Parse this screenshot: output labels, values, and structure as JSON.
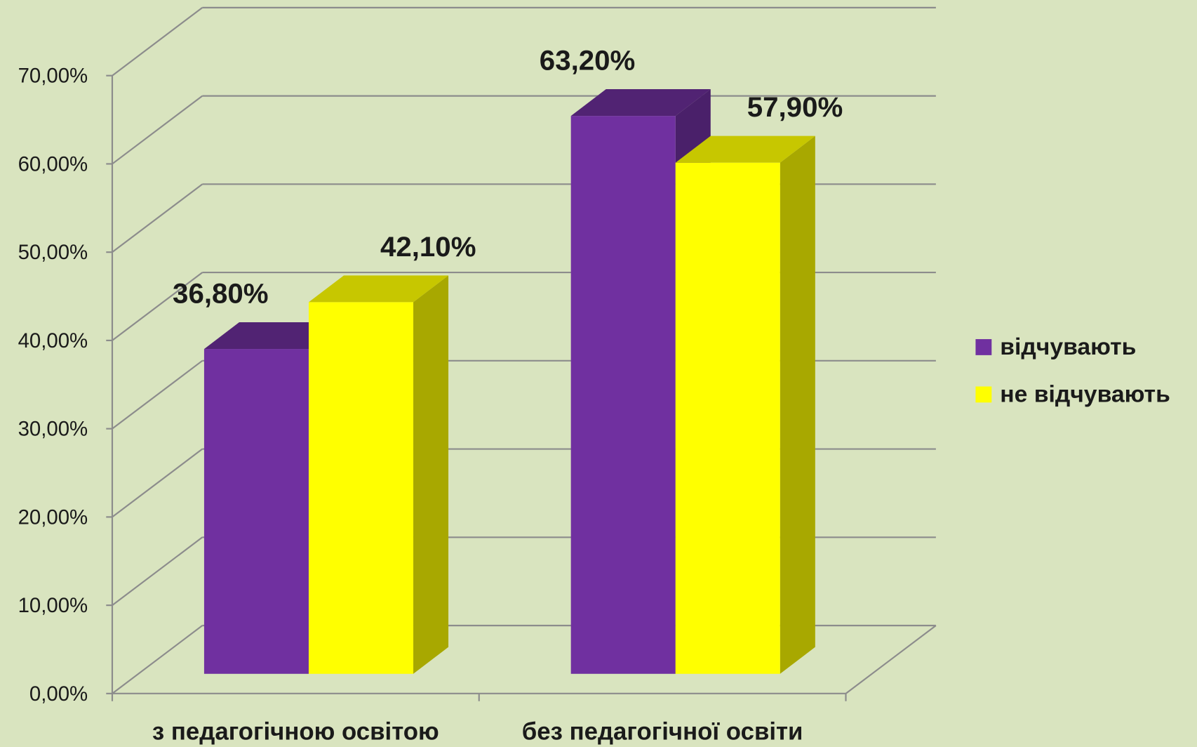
{
  "chart_data": {
    "type": "bar3d",
    "categories": [
      "з педагогічною освітою",
      "без педагогічної освіти"
    ],
    "series": [
      {
        "name": "відчувають",
        "color": "#7030a0",
        "values": [
          36.8,
          63.2
        ],
        "value_labels": [
          "36,80%",
          "63,20%"
        ]
      },
      {
        "name": "не відчувають",
        "color": "#ffff00",
        "values": [
          42.1,
          57.9
        ],
        "value_labels": [
          "42,10%",
          "57,90%"
        ]
      }
    ],
    "ylim": [
      0,
      70
    ],
    "yticks": [
      {
        "value": 0,
        "label": "0,00%"
      },
      {
        "value": 10,
        "label": "10,00%"
      },
      {
        "value": 20,
        "label": "20,00%"
      },
      {
        "value": 30,
        "label": "30,00%"
      },
      {
        "value": 40,
        "label": "40,00%"
      },
      {
        "value": 50,
        "label": "50,00%"
      },
      {
        "value": 60,
        "label": "60,00%"
      },
      {
        "value": 70,
        "label": "70,00%"
      }
    ],
    "grid": true,
    "legend": "right"
  }
}
